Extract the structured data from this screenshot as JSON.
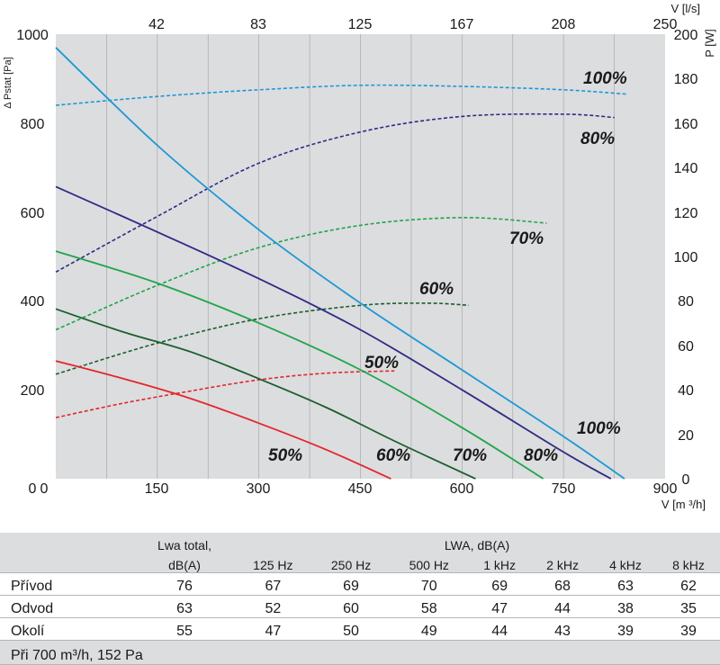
{
  "chart_data": {
    "type": "line",
    "title": "",
    "xlabel": "V [m ³/h]",
    "ylabel": "Δ Pstat [Pa]",
    "y2label": "P [W]",
    "x2label": "V [l/s]",
    "xlim": [
      0,
      900
    ],
    "ylim": [
      0,
      1000
    ],
    "y2lim": [
      0,
      200
    ],
    "x_ticks": [
      "0",
      "150",
      "300",
      "450",
      "600",
      "750",
      "900"
    ],
    "y_ticks": [
      "0",
      "200",
      "400",
      "600",
      "800",
      "1000"
    ],
    "y2_ticks": [
      "0",
      "20",
      "40",
      "60",
      "80",
      "100",
      "120",
      "140",
      "160",
      "180",
      "200"
    ],
    "x2_ticks": [
      "42",
      "83",
      "125",
      "167",
      "208",
      "250"
    ],
    "pressure_series": [
      {
        "name": "50%",
        "color": "#e3262d",
        "x": [
          0,
          100,
          200,
          300,
          400,
          495
        ],
        "y": [
          265,
          225,
          180,
          125,
          65,
          0
        ]
      },
      {
        "name": "60%",
        "color": "#1a5e2e",
        "x": [
          0,
          100,
          200,
          300,
          400,
          500,
          620
        ],
        "y": [
          382,
          330,
          285,
          225,
          160,
          85,
          0
        ]
      },
      {
        "name": "70%",
        "color": "#1fa54a",
        "x": [
          0,
          150,
          300,
          450,
          600,
          720
        ],
        "y": [
          512,
          440,
          350,
          245,
          115,
          0
        ]
      },
      {
        "name": "80%",
        "color": "#2e2a86",
        "x": [
          0,
          150,
          300,
          450,
          600,
          750,
          820
        ],
        "y": [
          657,
          555,
          450,
          335,
          200,
          60,
          0
        ]
      },
      {
        "name": "100%",
        "color": "#1e98d5",
        "x": [
          0,
          150,
          300,
          450,
          600,
          750,
          840
        ],
        "y": [
          970,
          750,
          560,
          395,
          245,
          95,
          0
        ]
      }
    ],
    "power_series": [
      {
        "name": "50%",
        "color": "#e3262d",
        "x": [
          0,
          100,
          200,
          300,
          400,
          500
        ],
        "y": [
          27.5,
          34,
          39.5,
          44.5,
          47.5,
          48.5
        ]
      },
      {
        "name": "60%",
        "color": "#1a5e2e",
        "x": [
          0,
          150,
          300,
          450,
          550,
          610
        ],
        "y": [
          47,
          61,
          72,
          78,
          79,
          78
        ]
      },
      {
        "name": "70%",
        "color": "#1fa54a",
        "x": [
          0,
          150,
          300,
          450,
          600,
          725
        ],
        "y": [
          67,
          87,
          104,
          114,
          117.5,
          115
        ]
      },
      {
        "name": "80%",
        "color": "#2e2a86",
        "x": [
          0,
          150,
          300,
          450,
          600,
          750,
          825
        ],
        "y": [
          93,
          118,
          142,
          156,
          163,
          164,
          162.5
        ]
      },
      {
        "name": "100%",
        "color": "#1e98d5",
        "x": [
          0,
          150,
          300,
          450,
          600,
          750,
          845
        ],
        "y": [
          168,
          172,
          175,
          177,
          176.5,
          175,
          173
        ]
      }
    ],
    "labels": {
      "pressure": [
        "50%",
        "60%",
        "70%",
        "80%",
        "100%"
      ],
      "power": [
        "50%",
        "60%",
        "70%",
        "80%",
        "100%"
      ]
    }
  },
  "table": {
    "header": {
      "lwa_total": "Lwa total,",
      "lwa_total_unit": "dB(A)",
      "lwa_group": "LWA, dB(A)",
      "freqs": [
        "125 Hz",
        "250 Hz",
        "500 Hz",
        "1 kHz",
        "2 kHz",
        "4 kHz",
        "8 kHz"
      ]
    },
    "rows": [
      {
        "name": "Přívod",
        "total": "76",
        "values": [
          "67",
          "69",
          "70",
          "69",
          "68",
          "63",
          "62"
        ]
      },
      {
        "name": "Odvod",
        "total": "63",
        "values": [
          "52",
          "60",
          "58",
          "47",
          "44",
          "38",
          "35"
        ]
      },
      {
        "name": "Okolí",
        "total": "55",
        "values": [
          "47",
          "50",
          "49",
          "44",
          "43",
          "39",
          "39"
        ]
      }
    ],
    "note": "Při 700 m³/h, 152 Pa"
  }
}
